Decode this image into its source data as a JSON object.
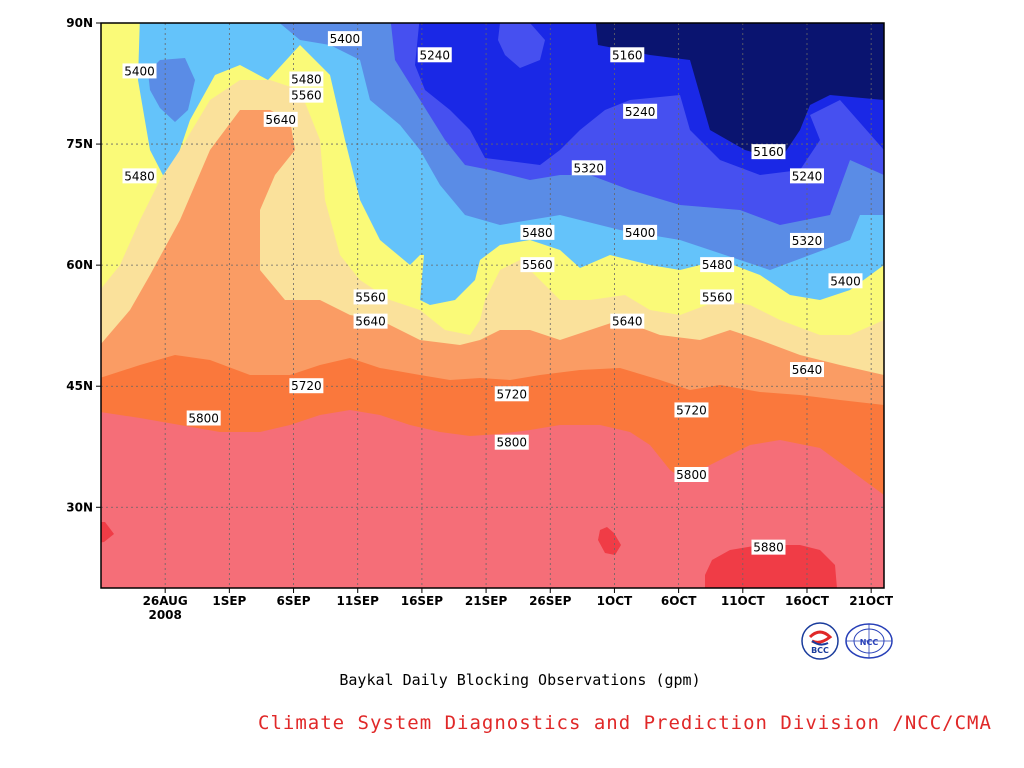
{
  "chart_data": {
    "type": "heatmap",
    "title": "",
    "subtitle": "Baykal Daily Blocking Observations (gpm)",
    "x_ticks": [
      "26AUG",
      "1SEP",
      "6SEP",
      "11SEP",
      "16SEP",
      "21SEP",
      "26SEP",
      "1OCT",
      "6OCT",
      "11OCT",
      "16OCT",
      "21OCT"
    ],
    "x_tick_year": "2008",
    "x_range": [
      "2008-08-21",
      "2008-10-21"
    ],
    "y_ticks": [
      "30N",
      "45N",
      "60N",
      "75N",
      "90N"
    ],
    "y_tick_values": [
      30,
      45,
      60,
      75,
      90
    ],
    "y_range": [
      20,
      90
    ],
    "grid": true,
    "contour_levels": [
      5160,
      5240,
      5320,
      5400,
      5480,
      5560,
      5640,
      5720,
      5800,
      5880
    ],
    "level_colors": [
      "#0a1470",
      "#1a28e6",
      "#4650f0",
      "#5a8ce6",
      "#64c3fa",
      "#fafa78",
      "#fae19b",
      "#fa9c64",
      "#fa783c",
      "#f56e78",
      "#f03c46"
    ],
    "contour_labels": [
      {
        "text": "5400",
        "date": "2008-08-24",
        "lat": 84
      },
      {
        "text": "5400",
        "date": "2008-09-09",
        "lat": 88
      },
      {
        "text": "5240",
        "date": "2008-09-16",
        "lat": 86
      },
      {
        "text": "5160",
        "date": "2008-10-01",
        "lat": 86
      },
      {
        "text": "5480",
        "date": "2008-09-06",
        "lat": 83
      },
      {
        "text": "5560",
        "date": "2008-09-06",
        "lat": 81
      },
      {
        "text": "5640",
        "date": "2008-09-04",
        "lat": 78
      },
      {
        "text": "5480",
        "date": "2008-08-24",
        "lat": 71
      },
      {
        "text": "5240",
        "date": "2008-10-02",
        "lat": 79
      },
      {
        "text": "5160",
        "date": "2008-10-12",
        "lat": 74
      },
      {
        "text": "5240",
        "date": "2008-10-15",
        "lat": 71
      },
      {
        "text": "5320",
        "date": "2008-09-28",
        "lat": 72
      },
      {
        "text": "5400",
        "date": "2008-10-02",
        "lat": 64
      },
      {
        "text": "5320",
        "date": "2008-10-15",
        "lat": 63
      },
      {
        "text": "5480",
        "date": "2008-09-24",
        "lat": 64
      },
      {
        "text": "5560",
        "date": "2008-09-24",
        "lat": 60
      },
      {
        "text": "5480",
        "date": "2008-10-08",
        "lat": 60
      },
      {
        "text": "5400",
        "date": "2008-10-18",
        "lat": 58
      },
      {
        "text": "5560",
        "date": "2008-09-11",
        "lat": 56
      },
      {
        "text": "5560",
        "date": "2008-10-08",
        "lat": 56
      },
      {
        "text": "5640",
        "date": "2008-09-11",
        "lat": 53
      },
      {
        "text": "5640",
        "date": "2008-10-01",
        "lat": 53
      },
      {
        "text": "5640",
        "date": "2008-10-15",
        "lat": 47
      },
      {
        "text": "5720",
        "date": "2008-09-06",
        "lat": 45
      },
      {
        "text": "5720",
        "date": "2008-09-22",
        "lat": 44
      },
      {
        "text": "5720",
        "date": "2008-10-06",
        "lat": 42
      },
      {
        "text": "5800",
        "date": "2008-08-29",
        "lat": 41
      },
      {
        "text": "5800",
        "date": "2008-09-22",
        "lat": 38
      },
      {
        "text": "5800",
        "date": "2008-10-06",
        "lat": 34
      },
      {
        "text": "5880",
        "date": "2008-10-12",
        "lat": 25
      }
    ]
  },
  "subtitle": "Baykal Daily Blocking Observations (gpm)",
  "credit": "Climate System Diagnostics and Prediction Division /NCC/CMA",
  "logos": {
    "bcc": {
      "icon": "bcc-logo-icon",
      "text": "BCC",
      "color": "#1a3c9c"
    },
    "ncc": {
      "icon": "ncc-logo-icon",
      "text": "NCC",
      "color": "#2840b8"
    }
  }
}
